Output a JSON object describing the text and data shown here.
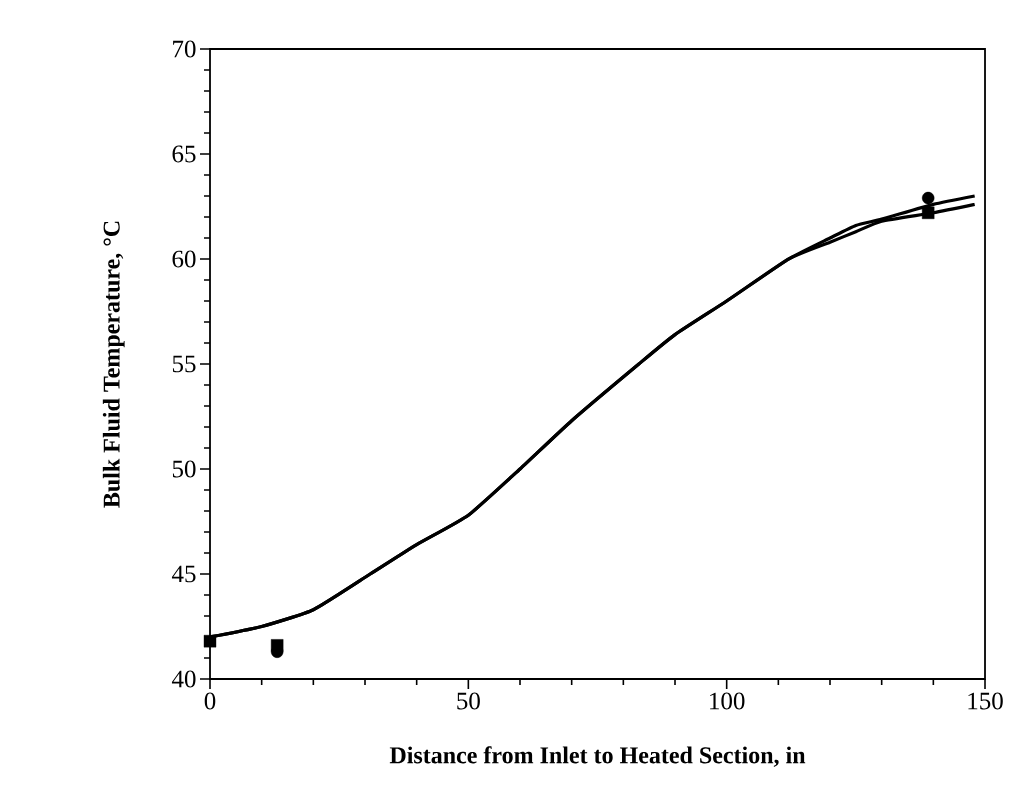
{
  "chart_data": {
    "type": "line",
    "xlabel": "Distance from Inlet to Heated Section, in",
    "ylabel": "Bulk Fluid Temperature, °C",
    "xlim": [
      0,
      150
    ],
    "ylim": [
      40,
      70
    ],
    "xticks": [
      0,
      50,
      100,
      150
    ],
    "yticks": [
      40,
      45,
      50,
      55,
      60,
      65,
      70
    ],
    "series": [
      {
        "color": "#000000",
        "x": [
          0,
          10,
          20,
          31,
          40,
          50,
          60,
          70,
          83,
          90,
          100,
          112,
          120,
          125,
          130,
          140,
          148
        ],
        "values": [
          42.0,
          42.5,
          43.3,
          45.0,
          46.4,
          47.8,
          50.0,
          52.3,
          55.0,
          56.4,
          58.0,
          60.0,
          61.0,
          61.6,
          61.9,
          62.6,
          63.0
        ]
      },
      {
        "color": "#000000",
        "x": [
          0,
          10,
          20,
          31,
          40,
          50,
          60,
          70,
          83,
          90,
          100,
          112,
          120,
          125,
          130,
          140,
          148
        ],
        "values": [
          42.0,
          42.5,
          43.3,
          45.0,
          46.4,
          47.8,
          50.0,
          52.3,
          55.0,
          56.4,
          58.0,
          60.0,
          60.8,
          61.3,
          61.8,
          62.2,
          62.6
        ]
      },
      {
        "type": "scatter",
        "marker": "square",
        "color": "#000000",
        "x": [
          0,
          13,
          139
        ],
        "values": [
          41.8,
          41.6,
          62.2
        ]
      },
      {
        "type": "scatter",
        "marker": "circle",
        "color": "#000000",
        "x": [
          13,
          139
        ],
        "values": [
          41.3,
          62.9
        ]
      }
    ]
  }
}
